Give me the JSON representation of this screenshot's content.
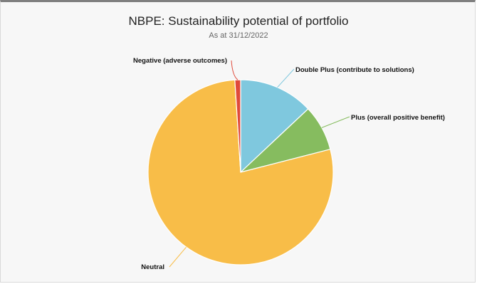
{
  "chart_data": {
    "type": "pie",
    "title": "NBPE: Sustainability potential of portfolio",
    "subtitle": "As at 31/12/2022",
    "categories": [
      "Double Plus (contribute to solutions)",
      "Plus (overall positive benefit)",
      "Neutral",
      "Negative (adverse outcomes)"
    ],
    "values": [
      13,
      8,
      78,
      1
    ],
    "colors": [
      "#7fc8de",
      "#86bc5f",
      "#f8bd48",
      "#e0493a"
    ],
    "start_angle_deg": 0,
    "direction": "clockwise",
    "slice_border_color": "#ffffff"
  }
}
